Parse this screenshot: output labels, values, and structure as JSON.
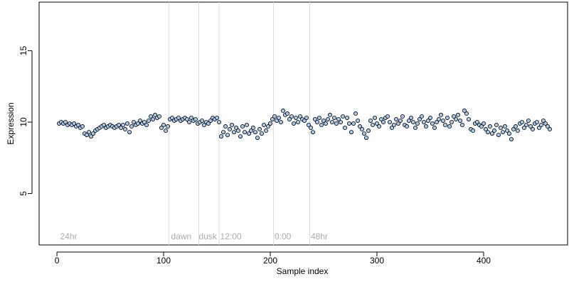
{
  "chart_data": {
    "type": "scatter",
    "x_label": "Sample index",
    "y_label": "Expression",
    "xlim": [
      -16.7,
      478.7
    ],
    "ylim": [
      1.4,
      18.4
    ],
    "xticks": [
      0,
      100,
      200,
      300,
      400
    ],
    "yticks": [
      5,
      10,
      15
    ],
    "vlines": [
      105,
      133,
      152,
      203,
      237
    ],
    "vline_color": "#dddddd",
    "annotations": [
      {
        "x": 3,
        "text": "24hr"
      },
      {
        "x": 107,
        "text": "dawn"
      },
      {
        "x": 133,
        "text": "dusk"
      },
      {
        "x": 153,
        "text": "12:00"
      },
      {
        "x": 204,
        "text": "0:00"
      },
      {
        "x": 238,
        "text": "48hr"
      }
    ],
    "series": [
      {
        "color": "#a8c8ea",
        "x": [
          2,
          4,
          6,
          8,
          10,
          12,
          14,
          16,
          18,
          20,
          22,
          24,
          26,
          28,
          30,
          32,
          34,
          36,
          38,
          40,
          42,
          44,
          46,
          48,
          50,
          52,
          54,
          56,
          58,
          60,
          62,
          64,
          66,
          68,
          70,
          72,
          74,
          76,
          78,
          80,
          82,
          84,
          86,
          88,
          90,
          92,
          94,
          96,
          98,
          100,
          102,
          104,
          106,
          108,
          110,
          112,
          114,
          116,
          118,
          120,
          122,
          124,
          126,
          128,
          130,
          132,
          134,
          136,
          138,
          140,
          142,
          144,
          146,
          148,
          150,
          152,
          154,
          156,
          158,
          160,
          162,
          164,
          166,
          168,
          170,
          172,
          174,
          176,
          178,
          180,
          182,
          184,
          186,
          188,
          190,
          192,
          194,
          196,
          198,
          200,
          202,
          204,
          206,
          208,
          210,
          212,
          214,
          216,
          218,
          220,
          222,
          224,
          226,
          228,
          230,
          232,
          234,
          236,
          238,
          240,
          242,
          244,
          246,
          248,
          250,
          252,
          254,
          256,
          258,
          260,
          262,
          264,
          266,
          268,
          270,
          272,
          274,
          276,
          278,
          280,
          282,
          284,
          286,
          288,
          290,
          292,
          294,
          296,
          298,
          300,
          302,
          304,
          306,
          308,
          310,
          312,
          314,
          316,
          318,
          320,
          322,
          324,
          326,
          328,
          330,
          332,
          334,
          336,
          338,
          340,
          342,
          344,
          346,
          348,
          350,
          352,
          354,
          356,
          358,
          360,
          362,
          364,
          366,
          368,
          370,
          372,
          374,
          376,
          378,
          380,
          382,
          384,
          386,
          388,
          390,
          392,
          394,
          396,
          398,
          400,
          402,
          404,
          406,
          408,
          410,
          412,
          414,
          416,
          418,
          420,
          422,
          424,
          426,
          428,
          430,
          432,
          434,
          436,
          438,
          440,
          442,
          444,
          446,
          448,
          450,
          452,
          454,
          456,
          458,
          460,
          462
        ],
        "values": [
          9.9,
          10.0,
          9.9,
          10.0,
          9.8,
          9.9,
          9.8,
          9.9,
          9.7,
          9.8,
          9.6,
          9.7,
          9.2,
          9.1,
          9.3,
          9.0,
          9.2,
          9.4,
          9.5,
          9.6,
          9.7,
          9.8,
          9.6,
          9.7,
          9.8,
          9.7,
          9.6,
          9.7,
          9.8,
          9.6,
          9.8,
          9.5,
          9.9,
          9.3,
          9.7,
          10.0,
          9.8,
          9.9,
          10.1,
          9.9,
          10.0,
          9.8,
          10.1,
          10.4,
          10.2,
          10.5,
          10.3,
          10.4,
          9.6,
          9.8,
          9.4,
          9.7,
          10.2,
          10.3,
          10.1,
          10.2,
          10.3,
          10.1,
          10.2,
          10.3,
          10.2,
          10.0,
          10.3,
          10.1,
          10.2,
          9.9,
          10.0,
          10.1,
          9.8,
          10.0,
          9.9,
          10.1,
          10.3,
          10.2,
          10.3,
          10.0,
          9.0,
          9.3,
          9.7,
          9.1,
          9.5,
          9.8,
          9.3,
          9.6,
          9.4,
          9.0,
          9.7,
          9.3,
          9.8,
          9.2,
          9.4,
          9.6,
          9.3,
          8.9,
          9.5,
          9.2,
          9.8,
          9.4,
          9.7,
          9.9,
          10.2,
          10.4,
          10.1,
          10.3,
          10.0,
          10.8,
          10.5,
          10.6,
          10.2,
          10.4,
          9.9,
          10.3,
          10.0,
          10.4,
          10.2,
          10.1,
          10.3,
          9.8,
          9.6,
          9.3,
          10.2,
          10.0,
          10.3,
          9.8,
          10.1,
          9.9,
          10.2,
          10.5,
          10.0,
          10.3,
          9.9,
          10.2,
          10.0,
          10.4,
          9.6,
          10.3,
          9.9,
          9.3,
          9.9,
          10.6,
          10.1,
          9.7,
          9.5,
          9.2,
          8.9,
          9.4,
          10.1,
          9.8,
          10.3,
          9.9,
          9.7,
          10.2,
          10.0,
          10.3,
          10.4,
          10.0,
          9.6,
          9.8,
          10.2,
          9.9,
          10.1,
          10.4,
          9.8,
          9.7,
          10.1,
          10.3,
          10.0,
          9.6,
          9.9,
          10.2,
          10.4,
          10.0,
          9.7,
          10.1,
          10.3,
          9.9,
          9.6,
          10.0,
          10.2,
          10.5,
          10.1,
          9.8,
          10.3,
          9.7,
          10.0,
          10.4,
          10.2,
          10.5,
          10.1,
          9.8,
          10.8,
          10.6,
          10.2,
          9.5,
          9.4,
          9.9,
          10.0,
          9.8,
          9.7,
          9.9,
          9.5,
          9.3,
          9.7,
          9.2,
          9.4,
          9.8,
          9.1,
          9.6,
          9.3,
          9.7,
          9.4,
          9.2,
          8.8,
          9.5,
          9.7,
          9.4,
          9.9,
          10.0,
          9.6,
          9.8,
          10.1,
          9.7,
          9.5,
          9.9,
          10.0,
          9.6,
          9.8,
          10.1,
          9.9,
          9.7,
          9.5
        ]
      }
    ]
  }
}
